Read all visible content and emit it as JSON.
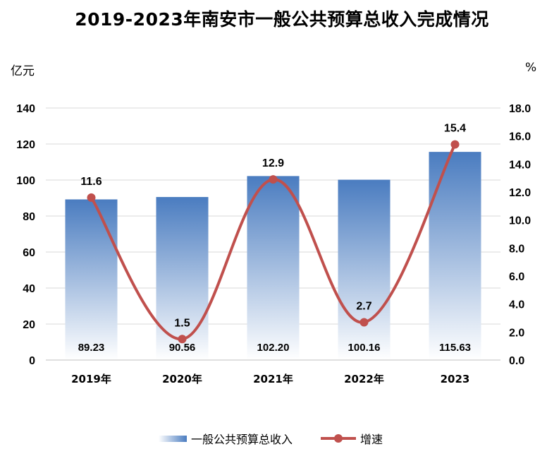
{
  "chart_data": {
    "type": "bar",
    "title": "2019-2023年南安市一般公共预算总收入完成情况",
    "left_unit": "亿元",
    "right_unit": "%",
    "categories": [
      "2019年",
      "2020年",
      "2021年",
      "2022年",
      "2023"
    ],
    "y_ticks": [
      "0",
      "20",
      "40",
      "60",
      "80",
      "100",
      "120",
      "140"
    ],
    "y2_ticks": [
      "0.0",
      "2.0",
      "4.0",
      "6.0",
      "8.0",
      "10.0",
      "12.0",
      "14.0",
      "16.0",
      "18.0"
    ],
    "ylim": [
      0,
      140
    ],
    "y2lim": [
      0,
      18
    ],
    "grid": true,
    "legend_position": "bottom",
    "series": [
      {
        "name": "一般公共预算总收入",
        "type": "bar",
        "axis": "left",
        "values": [
          89.23,
          90.56,
          102.2,
          100.16,
          115.63
        ],
        "labels": [
          "89.23",
          "90.56",
          "102.20",
          "100.16",
          "115.63"
        ],
        "color": "#4a7cc0"
      },
      {
        "name": "增速",
        "type": "line",
        "axis": "right",
        "values": [
          11.6,
          1.5,
          12.9,
          2.7,
          15.4
        ],
        "labels": [
          "11.6",
          "1.5",
          "12.9",
          "2.7",
          "15.4"
        ],
        "color": "#c0504d"
      }
    ]
  }
}
